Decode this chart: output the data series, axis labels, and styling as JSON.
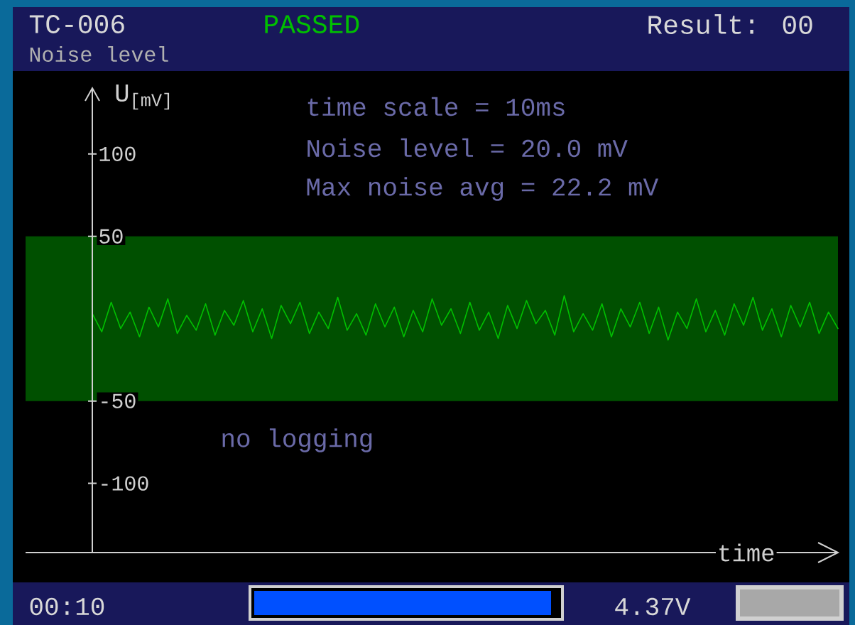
{
  "chart_data": {
    "type": "line",
    "title": "TC-006",
    "subtitle": "Noise level",
    "xlabel": "time",
    "ylabel": "U$_{[mV]}$",
    "annotations": [
      "time scale = 10ms",
      "Noise level = 20.0 mV",
      "Max noise avg = 22.2 mV",
      "no logging",
      "PASSED",
      "Result: 00",
      "00:10",
      "4.37V"
    ],
    "categories": [
      null,
      null,
      null,
      null,
      null,
      null,
      null,
      null,
      null,
      null,
      null,
      null,
      null,
      null,
      null,
      null,
      null,
      null,
      null,
      null,
      null,
      null,
      null,
      null,
      null,
      null,
      null,
      null,
      null,
      null,
      null,
      null,
      null,
      null,
      null,
      null,
      null,
      null,
      null,
      null,
      null,
      null,
      null,
      null,
      null,
      null,
      null,
      null,
      null,
      null,
      null,
      null,
      null,
      null,
      null,
      null,
      null,
      null,
      null,
      null,
      null,
      null,
      null,
      null,
      null,
      null,
      null,
      null,
      null,
      null,
      null,
      null,
      null,
      null,
      null,
      null,
      null,
      null,
      null,
      null
    ],
    "series": [
      {
        "color": "#00c000",
        "values": [
          3,
          -8,
          10,
          -6,
          4,
          -11,
          7,
          -5,
          12,
          -9,
          2,
          -7,
          9,
          -10,
          5,
          -4,
          11,
          -8,
          6,
          -12,
          8,
          -3,
          10,
          -9,
          4,
          -6,
          13,
          -7,
          3,
          -10,
          9,
          -5,
          7,
          -11,
          5,
          -8,
          12,
          -4,
          6,
          -9,
          10,
          -7,
          4,
          -12,
          8,
          -6,
          11,
          -3,
          5,
          -10,
          14,
          -8,
          3,
          -7,
          9,
          -11,
          6,
          -5,
          10,
          -9,
          7,
          -13,
          4,
          -6,
          12,
          -8,
          5,
          -10,
          9,
          -4,
          13,
          -7,
          6,
          -11,
          8,
          -5,
          10,
          -9,
          4,
          -6
        ]
      }
    ],
    "ylim": [
      -142,
      140
    ],
    "yticks": [
      100,
      50,
      -50,
      -100
    ],
    "tick_labels": "y",
    "marker": "none",
    "bands": [
      {
        "axis": "y",
        "from": -50,
        "to": 50,
        "color": "#005000"
      }
    ]
  }
}
